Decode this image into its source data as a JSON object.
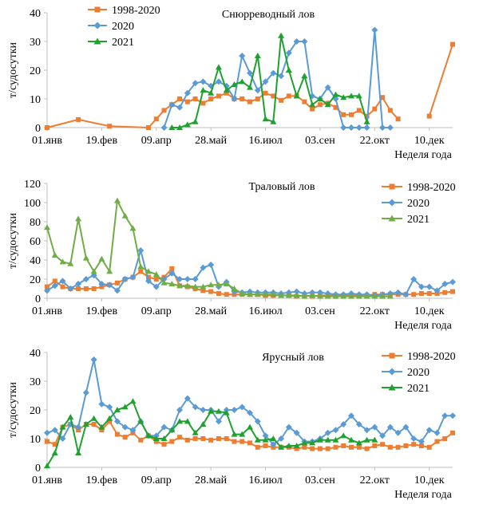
{
  "chart_data": [
    {
      "type": "line",
      "title": "Снюрреводный лов",
      "xlabel": "Неделя года",
      "ylabel": "т/судосутки",
      "ylim": [
        0,
        40
      ],
      "yticks": [
        0,
        10,
        20,
        30,
        40
      ],
      "xlim": [
        1,
        53
      ],
      "xticks": [
        {
          "x": 1,
          "label": "01.янв"
        },
        {
          "x": 8,
          "label": "19.фев"
        },
        {
          "x": 15,
          "label": "09.апр"
        },
        {
          "x": 22,
          "label": "28.май"
        },
        {
          "x": 29,
          "label": "16.июл"
        },
        {
          "x": 36,
          "label": "03.сен"
        },
        {
          "x": 43,
          "label": "22.окт"
        },
        {
          "x": 50,
          "label": "10.дек"
        }
      ],
      "legend": "top-left",
      "series": [
        {
          "name": "1998-2020",
          "color": "#ed7d31",
          "marker": "square",
          "connect_gaps": false,
          "x": [
            1,
            5,
            9,
            14,
            15,
            16,
            17,
            18,
            19,
            20,
            21,
            22,
            23,
            24,
            25,
            26,
            27,
            28,
            29,
            30,
            31,
            32,
            33,
            34,
            35,
            36,
            37,
            38,
            39,
            40,
            41,
            42,
            43,
            44,
            45,
            46,
            47,
            48,
            50,
            53
          ],
          "y": [
            0,
            2.8,
            0.5,
            0,
            3,
            6,
            8,
            10,
            9,
            10,
            8.5,
            10,
            11,
            12,
            10,
            10,
            9,
            10,
            12,
            11,
            9.5,
            11,
            11,
            9,
            6.5,
            8,
            8.5,
            7,
            4.5,
            4.5,
            6,
            4,
            6.5,
            10.5,
            6,
            3,
            null,
            null,
            4,
            29
          ]
        },
        {
          "name": "2020",
          "color": "#5b9bd5",
          "marker": "diamond",
          "connect_gaps": true,
          "x": [
            16,
            17,
            18,
            19,
            20,
            21,
            22,
            23,
            24,
            25,
            26,
            27,
            28,
            29,
            30,
            31,
            32,
            33,
            34,
            35,
            36,
            37,
            38,
            39,
            40,
            41,
            42,
            43,
            44,
            45
          ],
          "y": [
            0,
            8,
            7,
            12,
            15.5,
            16,
            14.5,
            16,
            14.5,
            10,
            25,
            19,
            13,
            16,
            19,
            18,
            26,
            30,
            30,
            11,
            10,
            14,
            10,
            0,
            0,
            0,
            0,
            34,
            0,
            0
          ]
        },
        {
          "name": "2021",
          "color": "#1fa12f",
          "marker": "triangle",
          "connect_gaps": true,
          "x": [
            17,
            18,
            19,
            20,
            21,
            22,
            23,
            24,
            25,
            26,
            27,
            28,
            29,
            30,
            31,
            32,
            33,
            34,
            35,
            36,
            37,
            38,
            39,
            40,
            41,
            42
          ],
          "y": [
            0,
            0,
            1,
            2,
            13,
            12,
            21,
            13,
            15,
            16,
            14,
            25,
            3,
            2,
            32,
            20,
            11,
            18,
            8,
            10,
            8,
            11.5,
            10.5,
            11,
            11,
            2
          ]
        }
      ]
    },
    {
      "type": "line",
      "title": "Траловый лов",
      "xlabel": "Неделя года",
      "ylabel": "т/судосутки",
      "ylim": [
        0,
        120
      ],
      "yticks": [
        0,
        20,
        40,
        60,
        80,
        100,
        120
      ],
      "xlim": [
        1,
        53
      ],
      "xticks": [
        {
          "x": 1,
          "label": "01.янв"
        },
        {
          "x": 8,
          "label": "19.фев"
        },
        {
          "x": 15,
          "label": "09.апр"
        },
        {
          "x": 22,
          "label": "28.май"
        },
        {
          "x": 29,
          "label": "16.июл"
        },
        {
          "x": 36,
          "label": "03.сен"
        },
        {
          "x": 43,
          "label": "22.окт"
        },
        {
          "x": 50,
          "label": "10.дек"
        }
      ],
      "legend": "top-right",
      "series": [
        {
          "name": "1998-2020",
          "color": "#ed7d31",
          "marker": "square",
          "connect_gaps": true,
          "x": [
            1,
            2,
            3,
            4,
            5,
            6,
            7,
            8,
            9,
            10,
            11,
            12,
            13,
            14,
            15,
            16,
            17,
            18,
            19,
            20,
            21,
            22,
            23,
            24,
            25,
            26,
            27,
            28,
            29,
            30,
            31,
            32,
            33,
            34,
            35,
            36,
            37,
            38,
            39,
            40,
            41,
            42,
            43,
            44,
            45,
            46,
            47,
            48,
            49,
            50,
            51,
            52,
            53
          ],
          "y": [
            12,
            18,
            12,
            10,
            10,
            10,
            10,
            12,
            14,
            16,
            20,
            22,
            28,
            22,
            20,
            22,
            31,
            13,
            12,
            10,
            8,
            7,
            5,
            4,
            4,
            4,
            4,
            4,
            3,
            3,
            3,
            3,
            2,
            3,
            2,
            3,
            3,
            3,
            3,
            3,
            3,
            3,
            4,
            4,
            4,
            4,
            4,
            4,
            5,
            5,
            5,
            6,
            7
          ]
        },
        {
          "name": "2020",
          "color": "#5b9bd5",
          "marker": "diamond",
          "connect_gaps": true,
          "x": [
            1,
            2,
            3,
            4,
            5,
            6,
            7,
            8,
            9,
            10,
            11,
            12,
            13,
            14,
            15,
            16,
            17,
            18,
            19,
            20,
            21,
            22,
            23,
            24,
            25,
            26,
            27,
            28,
            29,
            30,
            31,
            32,
            33,
            34,
            35,
            36,
            37,
            38,
            39,
            40,
            41,
            42,
            43,
            44,
            45,
            46,
            47,
            48,
            49,
            50,
            51,
            52,
            53
          ],
          "y": [
            8,
            13,
            18,
            10,
            15,
            20,
            24,
            15,
            14,
            8,
            20,
            22,
            50,
            18,
            12,
            20,
            26,
            20,
            20,
            20,
            32,
            35,
            12,
            17,
            7,
            6,
            7,
            6,
            6,
            6,
            5,
            6,
            7,
            5,
            6,
            6,
            5,
            4,
            4,
            5,
            4,
            4,
            3,
            4,
            5,
            6,
            4,
            20,
            12,
            12,
            8,
            15,
            17
          ]
        },
        {
          "name": "2021",
          "color": "#70ad47",
          "marker": "triangle",
          "connect_gaps": true,
          "x": [
            1,
            2,
            3,
            4,
            5,
            6,
            7,
            8,
            9,
            10,
            11,
            12,
            13,
            14,
            15,
            16,
            17,
            18,
            19,
            20,
            21,
            22,
            23,
            24,
            25,
            26,
            27,
            28,
            29,
            30,
            31,
            32,
            33,
            34,
            35,
            36,
            37,
            38,
            39,
            40,
            41,
            42,
            43,
            44,
            45
          ],
          "y": [
            74,
            45,
            38,
            36,
            83,
            42,
            28,
            41,
            28,
            102,
            86,
            73,
            33,
            28,
            25,
            16,
            15,
            13,
            13,
            12,
            12,
            14,
            14,
            15,
            10,
            5,
            4,
            4,
            4,
            4,
            3,
            3,
            3,
            2,
            3,
            2,
            2,
            2,
            2,
            2,
            2,
            2,
            2,
            2,
            2
          ]
        }
      ]
    },
    {
      "type": "line",
      "title": "Ярусный лов",
      "xlabel": "Неделя года",
      "ylabel": "т/судосутки",
      "ylim": [
        0,
        40
      ],
      "yticks": [
        0,
        10,
        20,
        30,
        40
      ],
      "xlim": [
        1,
        53
      ],
      "xticks": [
        {
          "x": 1,
          "label": "01.янв"
        },
        {
          "x": 8,
          "label": "19.фев"
        },
        {
          "x": 15,
          "label": "09.апр"
        },
        {
          "x": 22,
          "label": "28.май"
        },
        {
          "x": 29,
          "label": "16.июл"
        },
        {
          "x": 36,
          "label": "03.сен"
        },
        {
          "x": 43,
          "label": "22.окт"
        },
        {
          "x": 50,
          "label": "10.дек"
        }
      ],
      "legend": "top-right",
      "series": [
        {
          "name": "1998-2020",
          "color": "#ed7d31",
          "marker": "square",
          "connect_gaps": true,
          "x": [
            1,
            2,
            3,
            4,
            5,
            6,
            7,
            8,
            9,
            10,
            11,
            12,
            13,
            14,
            15,
            16,
            17,
            18,
            19,
            20,
            21,
            22,
            23,
            24,
            25,
            26,
            27,
            28,
            29,
            30,
            31,
            32,
            33,
            34,
            35,
            36,
            37,
            38,
            39,
            40,
            41,
            42,
            43,
            44,
            45,
            46,
            47,
            48,
            49,
            50,
            51,
            52,
            53
          ],
          "y": [
            9,
            8,
            14,
            15,
            13,
            15,
            15,
            13,
            16,
            11.5,
            10.5,
            12,
            9.5,
            11,
            9,
            8,
            9,
            10.5,
            9.5,
            10,
            10,
            9.5,
            10,
            10,
            9,
            9,
            8.5,
            7,
            7.5,
            7,
            7,
            7,
            6.5,
            7,
            6.5,
            6.5,
            6.5,
            7,
            7.5,
            7,
            7,
            6.5,
            7.5,
            8,
            7,
            7,
            7.5,
            8,
            7.5,
            7,
            9,
            10,
            12
          ]
        },
        {
          "name": "2020",
          "color": "#5b9bd5",
          "marker": "diamond",
          "connect_gaps": true,
          "x": [
            1,
            2,
            3,
            4,
            5,
            6,
            7,
            8,
            9,
            10,
            11,
            12,
            13,
            14,
            15,
            16,
            17,
            18,
            19,
            20,
            21,
            22,
            23,
            24,
            25,
            26,
            27,
            28,
            29,
            30,
            31,
            32,
            33,
            34,
            35,
            36,
            37,
            38,
            39,
            40,
            41,
            42,
            43,
            44,
            45,
            46,
            47,
            48,
            49,
            50,
            51,
            52,
            53
          ],
          "y": [
            12,
            13,
            10,
            15,
            14,
            26,
            37.5,
            22,
            21,
            16,
            14,
            13,
            16,
            11,
            11,
            14,
            13,
            20,
            24,
            21,
            20,
            20,
            16,
            20,
            20,
            21,
            19,
            16,
            11,
            8,
            10,
            14,
            12,
            9,
            9,
            10,
            12,
            13,
            15,
            18,
            15,
            13,
            14,
            11,
            14,
            12,
            14,
            10,
            9,
            13,
            12,
            18,
            18
          ]
        },
        {
          "name": "2021",
          "color": "#1fa12f",
          "marker": "triangle",
          "connect_gaps": true,
          "x": [
            1,
            2,
            3,
            4,
            5,
            6,
            7,
            8,
            9,
            10,
            11,
            12,
            13,
            14,
            15,
            16,
            17,
            18,
            19,
            20,
            21,
            22,
            23,
            24,
            25,
            26,
            27,
            28,
            29,
            30,
            31,
            32,
            33,
            34,
            35,
            36,
            37,
            38,
            39,
            40,
            41,
            42,
            43
          ],
          "y": [
            0.5,
            5,
            14,
            17.5,
            5,
            15,
            17,
            14,
            17,
            20,
            21,
            23,
            16,
            11,
            10,
            10,
            13,
            16,
            16,
            12,
            15,
            19.5,
            19.5,
            19,
            11.5,
            11.5,
            14,
            9.5,
            9.5,
            10,
            7,
            7.5,
            7.5,
            8.5,
            8.5,
            9.5,
            9.5,
            9.5,
            11,
            9.5,
            8.5,
            9.5,
            9.5
          ]
        }
      ]
    }
  ]
}
